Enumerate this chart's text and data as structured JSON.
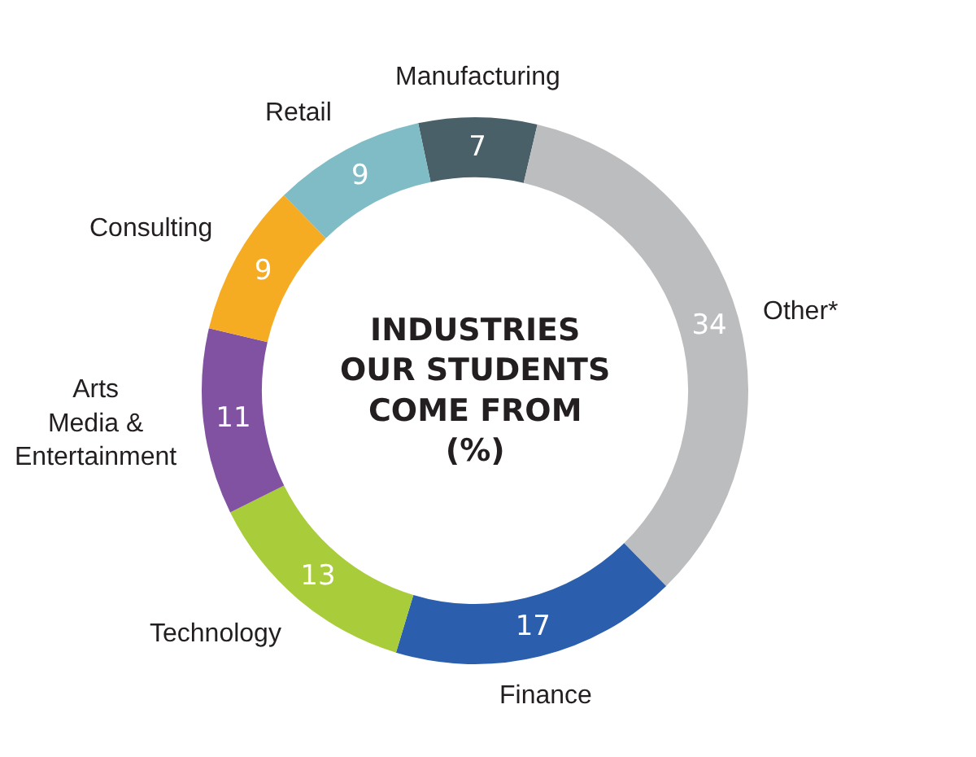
{
  "chart_data": {
    "type": "donut",
    "title": "INDUSTRIES\nOUR STUDENTS\nCOME FROM\n(%)",
    "categories": [
      "Manufacturing",
      "Other*",
      "Finance",
      "Technology",
      "Arts\nMedia &\nEntertainment",
      "Consulting",
      "Retail"
    ],
    "values": [
      7,
      34,
      17,
      13,
      11,
      9,
      9
    ],
    "colors": [
      "#4a6068",
      "#bcbdbf",
      "#2b5fad",
      "#a8cc3a",
      "#8052a1",
      "#f5ab22",
      "#7fbcc6"
    ],
    "data_labels": true,
    "legend": false
  }
}
